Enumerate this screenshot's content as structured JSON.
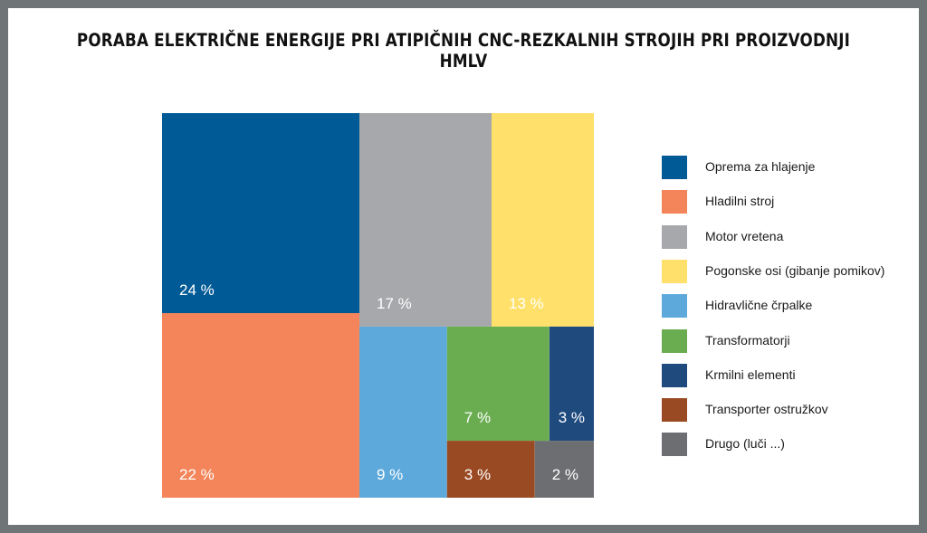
{
  "title": "PORABA ELEKTRIČNE ENERGIJE PRI ATIPIČNIH CNC-REZKALNIH STROJIH PRI PROIZVODNJI HMLV",
  "chart_data": {
    "type": "treemap",
    "title": "PORABA ELEKTRIČNE ENERGIJE PRI ATIPIČNIH CNC-REZKALNIH STROJIH PRI PROIZVODNJI HMLV",
    "unit": "%",
    "legend_position": "right",
    "items": [
      {
        "name": "Oprema za hlajenje",
        "value": 24,
        "label": "24 %",
        "color": "#005a96"
      },
      {
        "name": "Hladilni stroj",
        "value": 22,
        "label": "22 %",
        "color": "#f4855a"
      },
      {
        "name": "Motor vretena",
        "value": 17,
        "label": "17 %",
        "color": "#a7a8ab"
      },
      {
        "name": "Pogonske osi (gibanje pomikov)",
        "value": 13,
        "label": "13 %",
        "color": "#ffe06a"
      },
      {
        "name": "Hidravlične črpalke",
        "value": 9,
        "label": "9 %",
        "color": "#5ea9dc"
      },
      {
        "name": "Transformatorji",
        "value": 7,
        "label": "7 %",
        "color": "#6aad50"
      },
      {
        "name": "Krmilni elementi",
        "value": 3,
        "label": "3 %",
        "color": "#1f4a7e"
      },
      {
        "name": "Transporter ostružkov",
        "value": 3,
        "label": "3 %",
        "color": "#9a4a22"
      },
      {
        "name": "Drugo (luči ...)",
        "value": 2,
        "label": "2 %",
        "color": "#6d6e71"
      }
    ]
  }
}
